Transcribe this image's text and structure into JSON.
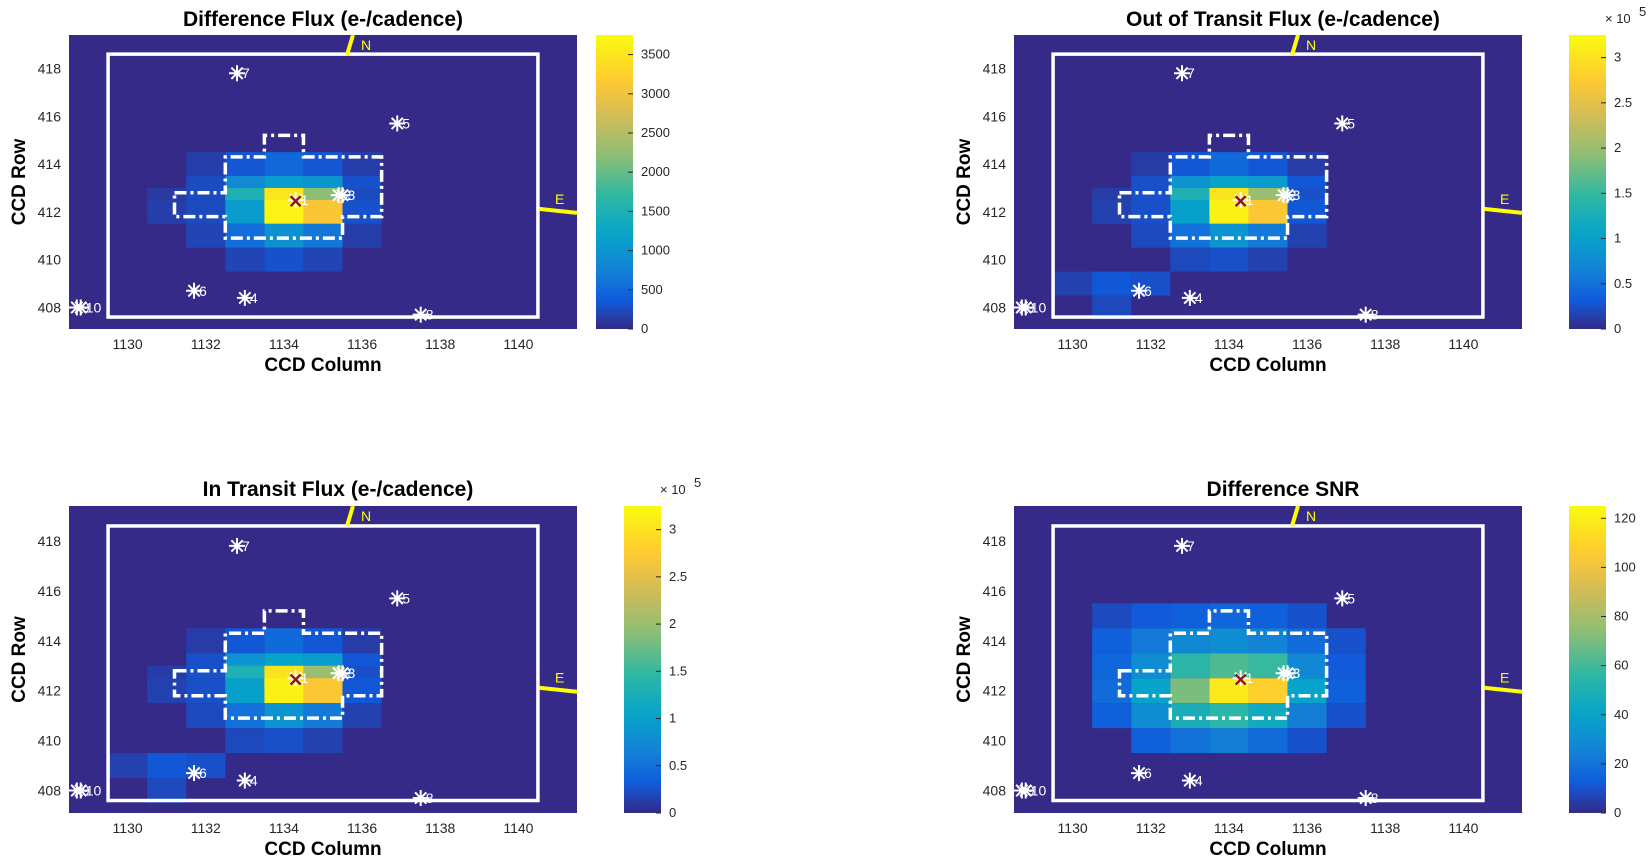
{
  "chart_data": [
    {
      "type": "heatmap",
      "title": "Difference Flux (e-/cadence)",
      "xlabel": "CCD Column",
      "ylabel": "CCD Row",
      "xlim": [
        1128.5,
        1141.5
      ],
      "ylim": [
        407.1,
        419.4
      ],
      "xticks": [
        "1130",
        "1132",
        "1134",
        "1136",
        "1138",
        "1140"
      ],
      "yticks": [
        "408",
        "410",
        "412",
        "414",
        "416",
        "418"
      ],
      "colorbar": {
        "min": 0,
        "max": 3750,
        "ticks": [
          "0",
          "500",
          "1000",
          "1500",
          "2000",
          "2500",
          "3000",
          "3500"
        ],
        "multiplier": ""
      },
      "grid": "off",
      "pixels": [
        {
          "col": 1132,
          "row": 414,
          "value": 150
        },
        {
          "col": 1133,
          "row": 414,
          "value": 330
        },
        {
          "col": 1134,
          "row": 414,
          "value": 500
        },
        {
          "col": 1135,
          "row": 414,
          "value": 330
        },
        {
          "col": 1136,
          "row": 414,
          "value": 150
        },
        {
          "col": 1132,
          "row": 413,
          "value": 250
        },
        {
          "col": 1133,
          "row": 413,
          "value": 850
        },
        {
          "col": 1134,
          "row": 413,
          "value": 1100
        },
        {
          "col": 1135,
          "row": 413,
          "value": 1000
        },
        {
          "col": 1136,
          "row": 413,
          "value": 300
        },
        {
          "col": 1131,
          "row": 412.5,
          "value": 120
        },
        {
          "col": 1133,
          "row": 412.5,
          "value": 1500
        },
        {
          "col": 1134,
          "row": 412.5,
          "value": 3500
        },
        {
          "col": 1135,
          "row": 412.5,
          "value": 2200
        },
        {
          "col": 1136,
          "row": 412.5,
          "value": 250
        },
        {
          "col": 1131,
          "row": 412,
          "value": 150
        },
        {
          "col": 1132,
          "row": 412,
          "value": 250
        },
        {
          "col": 1133,
          "row": 412,
          "value": 1100
        },
        {
          "col": 1134,
          "row": 412,
          "value": 3650
        },
        {
          "col": 1135,
          "row": 412,
          "value": 3100
        },
        {
          "col": 1136,
          "row": 412,
          "value": 300
        },
        {
          "col": 1132,
          "row": 411,
          "value": 200
        },
        {
          "col": 1133,
          "row": 411,
          "value": 550
        },
        {
          "col": 1134,
          "row": 411,
          "value": 950
        },
        {
          "col": 1135,
          "row": 411,
          "value": 650
        },
        {
          "col": 1136,
          "row": 411,
          "value": 150
        },
        {
          "col": 1133,
          "row": 410,
          "value": 200
        },
        {
          "col": 1134,
          "row": 410,
          "value": 300
        },
        {
          "col": 1135,
          "row": 410,
          "value": 200
        }
      ],
      "stars": [
        {
          "label": "1",
          "col": 1134.3,
          "row": 412.5
        },
        {
          "label": "2",
          "col": 1135.4,
          "row": 412.7
        },
        {
          "label": "3",
          "col": 1135.5,
          "row": 412.7
        },
        {
          "label": "4",
          "col": 1133.0,
          "row": 408.4
        },
        {
          "label": "5",
          "col": 1136.9,
          "row": 415.7
        },
        {
          "label": "6",
          "col": 1131.7,
          "row": 408.7
        },
        {
          "label": "7",
          "col": 1132.8,
          "row": 417.8
        },
        {
          "label": "8",
          "col": 1137.5,
          "row": 407.7
        },
        {
          "label": "9",
          "col": 1128.7,
          "row": 408.0
        },
        {
          "label": "10",
          "col": 1128.8,
          "row": 408.0
        }
      ],
      "centroid_marker": "x",
      "compass": {
        "north": "N",
        "east": "E"
      }
    },
    {
      "type": "heatmap",
      "title": "Out of Transit Flux (e-/cadence)",
      "xlabel": "CCD Column",
      "ylabel": "CCD Row",
      "xlim": [
        1128.5,
        1141.5
      ],
      "ylim": [
        407.1,
        419.4
      ],
      "xticks": [
        "1130",
        "1132",
        "1134",
        "1136",
        "1138",
        "1140"
      ],
      "yticks": [
        "408",
        "410",
        "412",
        "414",
        "416",
        "418"
      ],
      "colorbar": {
        "min": 0,
        "max": 3.25,
        "ticks": [
          "0",
          "0.5",
          "1",
          "1.5",
          "2",
          "2.5",
          "3"
        ],
        "multiplier": "× 10",
        "exponent": "5"
      },
      "grid": "off",
      "pixels": [
        {
          "col": 1132,
          "row": 414,
          "value": 0.12
        },
        {
          "col": 1133,
          "row": 414,
          "value": 0.3
        },
        {
          "col": 1134,
          "row": 414,
          "value": 0.45
        },
        {
          "col": 1135,
          "row": 414,
          "value": 0.3
        },
        {
          "col": 1136,
          "row": 414,
          "value": 0.12
        },
        {
          "col": 1132,
          "row": 413,
          "value": 0.25
        },
        {
          "col": 1133,
          "row": 413,
          "value": 0.85
        },
        {
          "col": 1134,
          "row": 413,
          "value": 1.05
        },
        {
          "col": 1135,
          "row": 413,
          "value": 0.95
        },
        {
          "col": 1136,
          "row": 413,
          "value": 0.3
        },
        {
          "col": 1131,
          "row": 412.5,
          "value": 0.12
        },
        {
          "col": 1133,
          "row": 412.5,
          "value": 1.3
        },
        {
          "col": 1134,
          "row": 412.5,
          "value": 3.0
        },
        {
          "col": 1135,
          "row": 412.5,
          "value": 2.0
        },
        {
          "col": 1136,
          "row": 412.5,
          "value": 0.25
        },
        {
          "col": 1131,
          "row": 412,
          "value": 0.15
        },
        {
          "col": 1132,
          "row": 412,
          "value": 0.25
        },
        {
          "col": 1133,
          "row": 412,
          "value": 1.0
        },
        {
          "col": 1134,
          "row": 412,
          "value": 3.15
        },
        {
          "col": 1135,
          "row": 412,
          "value": 2.7
        },
        {
          "col": 1136,
          "row": 412,
          "value": 0.3
        },
        {
          "col": 1132,
          "row": 411,
          "value": 0.2
        },
        {
          "col": 1133,
          "row": 411,
          "value": 0.5
        },
        {
          "col": 1134,
          "row": 411,
          "value": 0.85
        },
        {
          "col": 1135,
          "row": 411,
          "value": 0.6
        },
        {
          "col": 1136,
          "row": 411,
          "value": 0.15
        },
        {
          "col": 1133,
          "row": 410,
          "value": 0.2
        },
        {
          "col": 1134,
          "row": 410,
          "value": 0.25
        },
        {
          "col": 1135,
          "row": 410,
          "value": 0.15
        },
        {
          "col": 1130,
          "row": 409,
          "value": 0.15
        },
        {
          "col": 1131,
          "row": 409,
          "value": 0.3
        },
        {
          "col": 1132,
          "row": 409,
          "value": 0.25
        },
        {
          "col": 1131,
          "row": 408,
          "value": 0.2
        }
      ],
      "stars": [
        {
          "label": "1",
          "col": 1134.3,
          "row": 412.5
        },
        {
          "label": "2",
          "col": 1135.4,
          "row": 412.7
        },
        {
          "label": "3",
          "col": 1135.5,
          "row": 412.7
        },
        {
          "label": "4",
          "col": 1133.0,
          "row": 408.4
        },
        {
          "label": "5",
          "col": 1136.9,
          "row": 415.7
        },
        {
          "label": "6",
          "col": 1131.7,
          "row": 408.7
        },
        {
          "label": "7",
          "col": 1132.8,
          "row": 417.8
        },
        {
          "label": "8",
          "col": 1137.5,
          "row": 407.7
        },
        {
          "label": "9",
          "col": 1128.7,
          "row": 408.0
        },
        {
          "label": "10",
          "col": 1128.8,
          "row": 408.0
        }
      ],
      "centroid_marker": "x",
      "compass": {
        "north": "N",
        "east": "E"
      }
    },
    {
      "type": "heatmap",
      "title": "In Transit Flux (e-/cadence)",
      "xlabel": "CCD Column",
      "ylabel": "CCD Row",
      "xlim": [
        1128.5,
        1141.5
      ],
      "ylim": [
        407.1,
        419.4
      ],
      "xticks": [
        "1130",
        "1132",
        "1134",
        "1136",
        "1138",
        "1140"
      ],
      "yticks": [
        "408",
        "410",
        "412",
        "414",
        "416",
        "418"
      ],
      "colorbar": {
        "min": 0,
        "max": 3.25,
        "ticks": [
          "0",
          "0.5",
          "1",
          "1.5",
          "2",
          "2.5",
          "3"
        ],
        "multiplier": "× 10",
        "exponent": "5"
      },
      "grid": "off",
      "pixels": [
        {
          "col": 1132,
          "row": 414,
          "value": 0.12
        },
        {
          "col": 1133,
          "row": 414,
          "value": 0.3
        },
        {
          "col": 1134,
          "row": 414,
          "value": 0.45
        },
        {
          "col": 1135,
          "row": 414,
          "value": 0.3
        },
        {
          "col": 1136,
          "row": 414,
          "value": 0.12
        },
        {
          "col": 1132,
          "row": 413,
          "value": 0.25
        },
        {
          "col": 1133,
          "row": 413,
          "value": 0.85
        },
        {
          "col": 1134,
          "row": 413,
          "value": 1.05
        },
        {
          "col": 1135,
          "row": 413,
          "value": 0.95
        },
        {
          "col": 1136,
          "row": 413,
          "value": 0.3
        },
        {
          "col": 1131,
          "row": 412.5,
          "value": 0.12
        },
        {
          "col": 1133,
          "row": 412.5,
          "value": 1.3
        },
        {
          "col": 1134,
          "row": 412.5,
          "value": 3.0
        },
        {
          "col": 1135,
          "row": 412.5,
          "value": 2.0
        },
        {
          "col": 1136,
          "row": 412.5,
          "value": 0.25
        },
        {
          "col": 1131,
          "row": 412,
          "value": 0.15
        },
        {
          "col": 1132,
          "row": 412,
          "value": 0.25
        },
        {
          "col": 1133,
          "row": 412,
          "value": 1.0
        },
        {
          "col": 1134,
          "row": 412,
          "value": 3.15
        },
        {
          "col": 1135,
          "row": 412,
          "value": 2.7
        },
        {
          "col": 1136,
          "row": 412,
          "value": 0.3
        },
        {
          "col": 1132,
          "row": 411,
          "value": 0.2
        },
        {
          "col": 1133,
          "row": 411,
          "value": 0.5
        },
        {
          "col": 1134,
          "row": 411,
          "value": 0.85
        },
        {
          "col": 1135,
          "row": 411,
          "value": 0.6
        },
        {
          "col": 1136,
          "row": 411,
          "value": 0.15
        },
        {
          "col": 1133,
          "row": 410,
          "value": 0.2
        },
        {
          "col": 1134,
          "row": 410,
          "value": 0.25
        },
        {
          "col": 1135,
          "row": 410,
          "value": 0.15
        },
        {
          "col": 1130,
          "row": 409,
          "value": 0.15
        },
        {
          "col": 1131,
          "row": 409,
          "value": 0.3
        },
        {
          "col": 1132,
          "row": 409,
          "value": 0.25
        },
        {
          "col": 1131,
          "row": 408,
          "value": 0.2
        }
      ],
      "stars": [
        {
          "label": "1",
          "col": 1134.3,
          "row": 412.5
        },
        {
          "label": "2",
          "col": 1135.4,
          "row": 412.7
        },
        {
          "label": "3",
          "col": 1135.5,
          "row": 412.7
        },
        {
          "label": "4",
          "col": 1133.0,
          "row": 408.4
        },
        {
          "label": "5",
          "col": 1136.9,
          "row": 415.7
        },
        {
          "label": "6",
          "col": 1131.7,
          "row": 408.7
        },
        {
          "label": "7",
          "col": 1132.8,
          "row": 417.8
        },
        {
          "label": "8",
          "col": 1137.5,
          "row": 407.7
        },
        {
          "label": "9",
          "col": 1128.7,
          "row": 408.0
        },
        {
          "label": "10",
          "col": 1128.8,
          "row": 408.0
        }
      ],
      "centroid_marker": "x",
      "compass": {
        "north": "N",
        "east": "E"
      }
    },
    {
      "type": "heatmap",
      "title": "Difference SNR",
      "xlabel": "CCD Column",
      "ylabel": "CCD Row",
      "xlim": [
        1128.5,
        1141.5
      ],
      "ylim": [
        407.1,
        419.4
      ],
      "xticks": [
        "1130",
        "1132",
        "1134",
        "1136",
        "1138",
        "1140"
      ],
      "yticks": [
        "408",
        "410",
        "412",
        "414",
        "416",
        "418"
      ],
      "colorbar": {
        "min": 0,
        "max": 125,
        "ticks": [
          "0",
          "20",
          "40",
          "60",
          "80",
          "100",
          "120"
        ],
        "multiplier": ""
      },
      "grid": "off",
      "pixels": [
        {
          "col": 1131,
          "row": 415,
          "value": 8
        },
        {
          "col": 1132,
          "row": 415,
          "value": 12
        },
        {
          "col": 1133,
          "row": 415,
          "value": 14
        },
        {
          "col": 1134,
          "row": 415,
          "value": 16
        },
        {
          "col": 1135,
          "row": 415,
          "value": 14
        },
        {
          "col": 1136,
          "row": 415,
          "value": 10
        },
        {
          "col": 1131,
          "row": 414,
          "value": 14
        },
        {
          "col": 1132,
          "row": 414,
          "value": 22
        },
        {
          "col": 1133,
          "row": 414,
          "value": 28
        },
        {
          "col": 1134,
          "row": 414,
          "value": 30
        },
        {
          "col": 1135,
          "row": 414,
          "value": 26
        },
        {
          "col": 1136,
          "row": 414,
          "value": 18
        },
        {
          "col": 1137,
          "row": 414,
          "value": 10
        },
        {
          "col": 1131,
          "row": 413,
          "value": 16
        },
        {
          "col": 1132,
          "row": 413,
          "value": 30
        },
        {
          "col": 1133,
          "row": 413,
          "value": 55
        },
        {
          "col": 1134,
          "row": 413,
          "value": 62
        },
        {
          "col": 1135,
          "row": 413,
          "value": 58
        },
        {
          "col": 1136,
          "row": 413,
          "value": 28
        },
        {
          "col": 1137,
          "row": 413,
          "value": 12
        },
        {
          "col": 1131,
          "row": 412,
          "value": 18
        },
        {
          "col": 1132,
          "row": 412,
          "value": 40
        },
        {
          "col": 1133,
          "row": 412,
          "value": 70
        },
        {
          "col": 1134,
          "row": 412,
          "value": 118
        },
        {
          "col": 1135,
          "row": 412,
          "value": 108
        },
        {
          "col": 1136,
          "row": 412,
          "value": 40
        },
        {
          "col": 1137,
          "row": 412,
          "value": 14
        },
        {
          "col": 1131,
          "row": 411,
          "value": 14
        },
        {
          "col": 1132,
          "row": 411,
          "value": 30
        },
        {
          "col": 1133,
          "row": 411,
          "value": 48
        },
        {
          "col": 1134,
          "row": 411,
          "value": 55
        },
        {
          "col": 1135,
          "row": 411,
          "value": 45
        },
        {
          "col": 1136,
          "row": 411,
          "value": 24
        },
        {
          "col": 1137,
          "row": 411,
          "value": 10
        },
        {
          "col": 1132,
          "row": 410,
          "value": 14
        },
        {
          "col": 1133,
          "row": 410,
          "value": 20
        },
        {
          "col": 1134,
          "row": 410,
          "value": 24
        },
        {
          "col": 1135,
          "row": 410,
          "value": 18
        },
        {
          "col": 1136,
          "row": 410,
          "value": 10
        }
      ],
      "stars": [
        {
          "label": "1",
          "col": 1134.3,
          "row": 412.5
        },
        {
          "label": "2",
          "col": 1135.4,
          "row": 412.7
        },
        {
          "label": "3",
          "col": 1135.5,
          "row": 412.7
        },
        {
          "label": "4",
          "col": 1133.0,
          "row": 408.4
        },
        {
          "label": "5",
          "col": 1136.9,
          "row": 415.7
        },
        {
          "label": "6",
          "col": 1131.7,
          "row": 408.7
        },
        {
          "label": "7",
          "col": 1132.8,
          "row": 417.8
        },
        {
          "label": "8",
          "col": 1137.5,
          "row": 407.7
        },
        {
          "label": "9",
          "col": 1128.7,
          "row": 408.0
        },
        {
          "label": "10",
          "col": 1128.8,
          "row": 408.0
        }
      ],
      "centroid_marker": "x",
      "compass": {
        "north": "N",
        "east": "E"
      }
    }
  ]
}
